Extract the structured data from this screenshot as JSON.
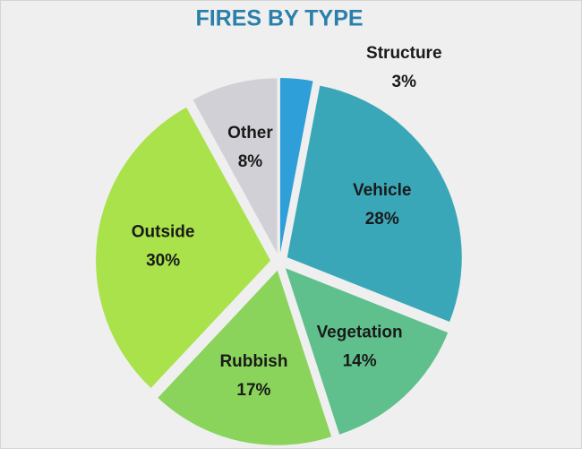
{
  "chart_data": {
    "type": "pie",
    "title": "FIRES BY TYPE",
    "categories": [
      "Structure",
      "Vehicle",
      "Vegetation",
      "Rubbish",
      "Outside",
      "Other"
    ],
    "values": [
      3,
      28,
      14,
      17,
      30,
      8
    ],
    "value_labels": [
      "3%",
      "28%",
      "14%",
      "17%",
      "30%",
      "8%"
    ],
    "colors": [
      "#2e9fd8",
      "#3aa7b9",
      "#5fc08d",
      "#8bd45c",
      "#a9e24a",
      "#d0d0d6"
    ]
  }
}
